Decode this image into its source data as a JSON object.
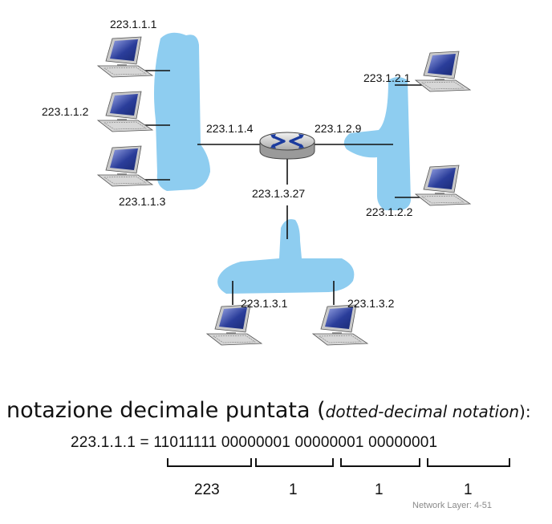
{
  "diagram": {
    "subnet_left": {
      "hosts": [
        "223.1.1.1",
        "223.1.1.2",
        "223.1.1.3"
      ],
      "router_interface": "223.1.1.4"
    },
    "subnet_right": {
      "hosts": [
        "223.1.2.1",
        "223.1.2.2"
      ],
      "router_interface": "223.1.2.9"
    },
    "subnet_bottom": {
      "hosts": [
        "223.1.3.1",
        "223.1.3.2"
      ],
      "router_interface": "223.1.3.27"
    },
    "colors": {
      "subnet_fill": "#8ecdf0",
      "router_body": "#d4d4d4",
      "router_arrows": "#1a3a9e",
      "screen": "#1d2f7a"
    },
    "icons": [
      "computer-icon",
      "router-icon"
    ]
  },
  "notation": {
    "title_main": "notazione decimale puntata (",
    "title_english": "dotted-decimal notation",
    "title_end": "):",
    "address": "223.1.1.1",
    "equals": "=",
    "octets_binary": [
      "11011111",
      "00000001",
      "00000001",
      "00000001"
    ],
    "octets_decimal": [
      "223",
      "1",
      "1",
      "1"
    ]
  },
  "footer": "Network Layer: 4-51"
}
